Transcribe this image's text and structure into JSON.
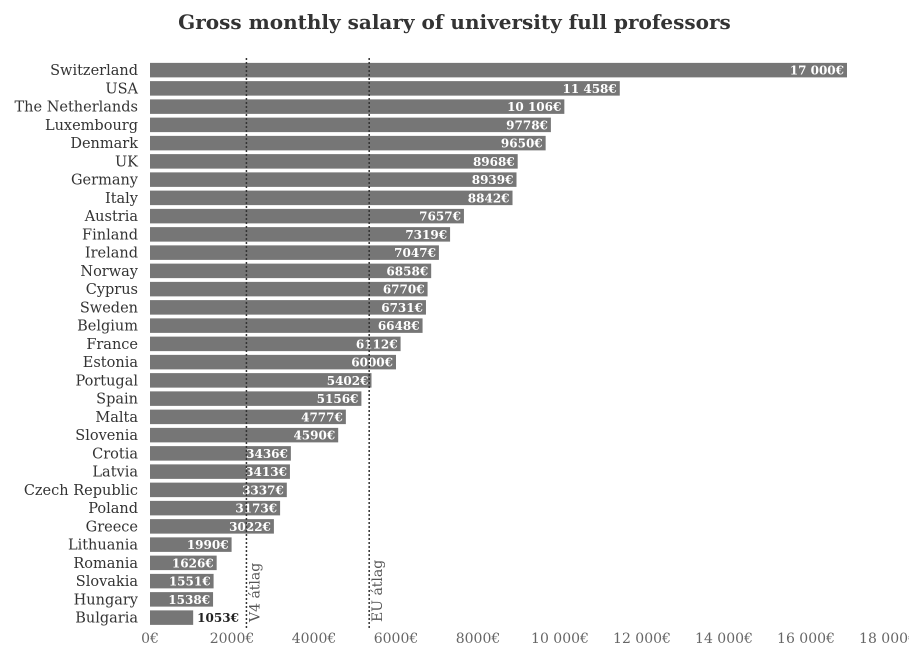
{
  "chart_data": {
    "type": "bar",
    "orientation": "horizontal",
    "title": "Gross monthly salary of university full professors",
    "categories": [
      "Switzerland",
      "USA",
      "The Netherlands",
      "Luxembourg",
      "Denmark",
      "UK",
      "Germany",
      "Italy",
      "Austria",
      "Finland",
      "Ireland",
      "Norway",
      "Cyprus",
      "Sweden",
      "Belgium",
      "France",
      "Estonia",
      "Portugal",
      "Spain",
      "Malta",
      "Slovenia",
      "Crotia",
      "Latvia",
      "Czech Republic",
      "Poland",
      "Greece",
      "Lithuania",
      "Romania",
      "Slovakia",
      "Hungary",
      "Bulgaria"
    ],
    "values": [
      17000,
      11458,
      10106,
      9778,
      9650,
      8968,
      8939,
      8842,
      7657,
      7319,
      7047,
      6858,
      6770,
      6731,
      6648,
      6112,
      6000,
      5402,
      5156,
      4777,
      4590,
      3436,
      3413,
      3337,
      3173,
      3022,
      1990,
      1626,
      1551,
      1538,
      1053
    ],
    "value_labels": [
      "17 000€",
      "11 458€",
      "10 106€",
      "9778€",
      "9650€",
      "8968€",
      "8939€",
      "8842€",
      "7657€",
      "7319€",
      "7047€",
      "6858€",
      "6770€",
      "6731€",
      "6648€",
      "6112€",
      "6000€",
      "5402€",
      "5156€",
      "4777€",
      "4590€",
      "3436€",
      "3413€",
      "3337€",
      "3173€",
      "3022€",
      "1990€",
      "1626€",
      "1551€",
      "1538€",
      "1053€"
    ],
    "xlim": [
      0,
      18000
    ],
    "x_ticks": [
      0,
      2000,
      4000,
      6000,
      8000,
      10000,
      12000,
      14000,
      16000,
      18000
    ],
    "x_tick_labels": [
      "0€",
      "2000€",
      "4000€",
      "6000€",
      "8000€",
      "10 000€",
      "12 000€",
      "14 000€",
      "16 000€",
      "18 000€"
    ],
    "reference_lines": [
      {
        "label": "V4 átlag",
        "value": 2352
      },
      {
        "label": "EU átlag",
        "value": 5346
      }
    ],
    "bar_color": "#767676",
    "label_inside_color": "#ffffff",
    "label_outside_color": "#222222"
  }
}
